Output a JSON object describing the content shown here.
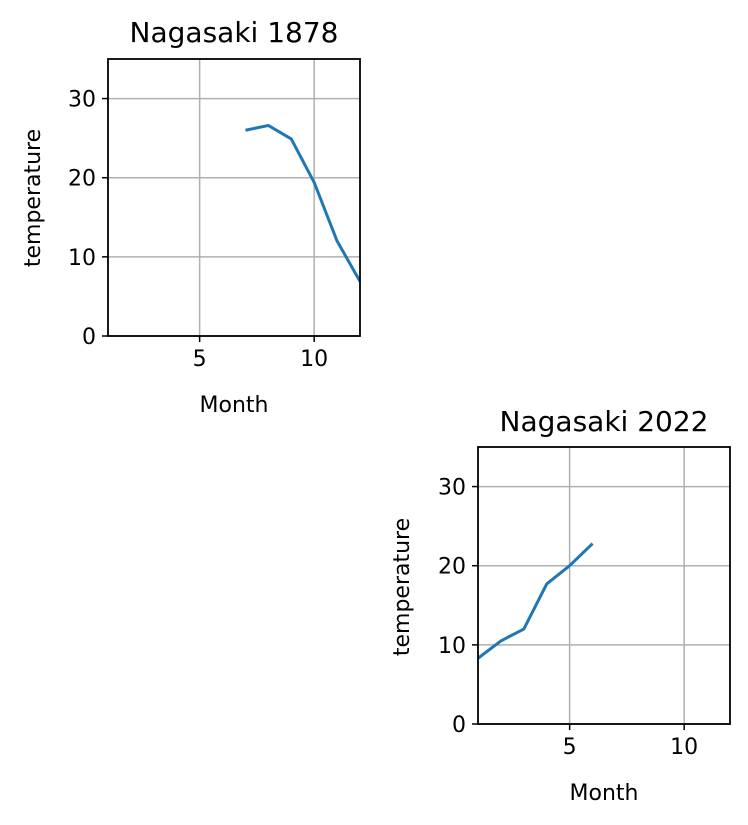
{
  "chart_data": [
    {
      "type": "line",
      "title": "Nagasaki 1878",
      "xlabel": "Month",
      "ylabel": "temperature",
      "xlim": [
        1,
        12
      ],
      "ylim": [
        0,
        35
      ],
      "xticks": [
        5,
        10
      ],
      "yticks": [
        0,
        10,
        20,
        30
      ],
      "grid": true,
      "series": [
        {
          "color": "#1f77b4",
          "x": [
            7,
            8,
            9,
            10,
            11,
            12
          ],
          "y": [
            26.0,
            26.6,
            24.9,
            19.4,
            12.0,
            6.9
          ]
        }
      ]
    },
    {
      "type": "line",
      "title": "Nagasaki 2022",
      "xlabel": "Month",
      "ylabel": "temperature",
      "xlim": [
        1,
        12
      ],
      "ylim": [
        0,
        35
      ],
      "xticks": [
        5,
        10
      ],
      "yticks": [
        0,
        10,
        20,
        30
      ],
      "grid": true,
      "series": [
        {
          "color": "#1f77b4",
          "x": [
            1,
            2,
            3,
            4,
            5,
            6
          ],
          "y": [
            8.3,
            10.5,
            12.0,
            17.7,
            20.0,
            22.8
          ]
        }
      ]
    }
  ]
}
